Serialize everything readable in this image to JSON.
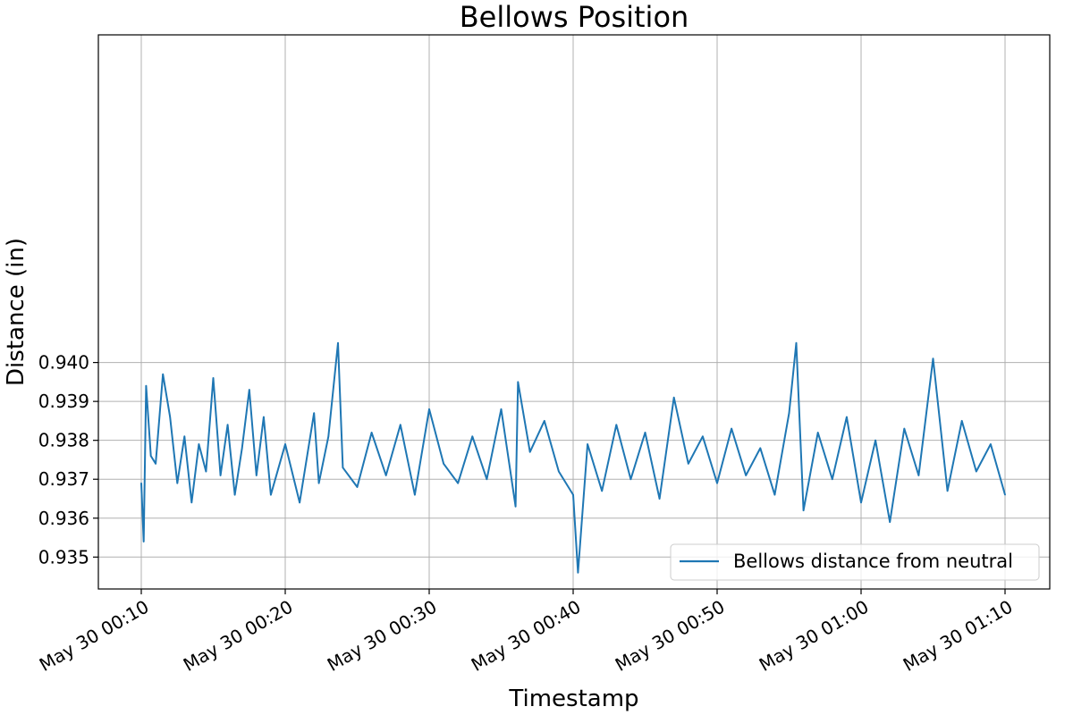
{
  "chart_data": {
    "type": "line",
    "title": "Bellows Position",
    "xlabel": "Timestamp",
    "ylabel": "Distance (in)",
    "x_range": [
      "May 30 00:10",
      "May 30 01:10"
    ],
    "ylim": [
      0.93418,
      0.94842
    ],
    "yticks": [
      {
        "value": 0.935,
        "label": "0.935"
      },
      {
        "value": 0.936,
        "label": "0.936"
      },
      {
        "value": 0.937,
        "label": "0.937"
      },
      {
        "value": 0.938,
        "label": "0.938"
      },
      {
        "value": 0.939,
        "label": "0.939"
      },
      {
        "value": 0.94,
        "label": "0.940"
      }
    ],
    "xticks": [
      {
        "value": "May 30 00:10",
        "label": "May 30 00:10"
      },
      {
        "value": "May 30 00:20",
        "label": "May 30 00:20"
      },
      {
        "value": "May 30 00:30",
        "label": "May 30 00:30"
      },
      {
        "value": "May 30 00:40",
        "label": "May 30 00:40"
      },
      {
        "value": "May 30 00:50",
        "label": "May 30 00:50"
      },
      {
        "value": "May 30 01:00",
        "label": "May 30 01:00"
      },
      {
        "value": "May 30 01:10",
        "label": "May 30 01:10"
      }
    ],
    "grid": true,
    "legend_position": "bottom-right",
    "series": [
      {
        "name": "Bellows distance from neutral",
        "color": "#1f77b4",
        "x": [
          "May 30 00:10",
          "May 30 00:10:10",
          "May 30 00:10:20",
          "May 30 00:10:40",
          "May 30 00:11",
          "May 30 00:11:30",
          "May 30 00:12",
          "May 30 00:12:30",
          "May 30 00:13",
          "May 30 00:13:30",
          "May 30 00:14",
          "May 30 00:14:30",
          "May 30 00:15",
          "May 30 00:15:30",
          "May 30 00:16",
          "May 30 00:16:30",
          "May 30 00:17",
          "May 30 00:17:30",
          "May 30 00:18",
          "May 30 00:18:30",
          "May 30 00:19",
          "May 30 00:20",
          "May 30 00:21",
          "May 30 00:22",
          "May 30 00:22:20",
          "May 30 00:23",
          "May 30 00:23:40",
          "May 30 00:24",
          "May 30 00:25",
          "May 30 00:26",
          "May 30 00:27",
          "May 30 00:28",
          "May 30 00:29",
          "May 30 00:30",
          "May 30 00:31",
          "May 30 00:32",
          "May 30 00:33",
          "May 30 00:34",
          "May 30 00:35",
          "May 30 00:36",
          "May 30 00:36:10",
          "May 30 00:37",
          "May 30 00:38",
          "May 30 00:39",
          "May 30 00:40",
          "May 30 00:40:20",
          "May 30 00:41",
          "May 30 00:42",
          "May 30 00:43",
          "May 30 00:44",
          "May 30 00:45",
          "May 30 00:46",
          "May 30 00:47",
          "May 30 00:48",
          "May 30 00:49",
          "May 30 00:50",
          "May 30 00:51",
          "May 30 00:52",
          "May 30 00:53",
          "May 30 00:54",
          "May 30 00:55",
          "May 30 00:55:30",
          "May 30 00:56",
          "May 30 00:57",
          "May 30 00:58",
          "May 30 00:59",
          "May 30 01:00",
          "May 30 01:01",
          "May 30 01:02",
          "May 30 01:03",
          "May 30 01:04",
          "May 30 01:05",
          "May 30 01:06",
          "May 30 01:07",
          "May 30 01:08",
          "May 30 01:09",
          "May 30 01:10"
        ],
        "y": [
          0.9369,
          0.9354,
          0.9394,
          0.9376,
          0.9374,
          0.9397,
          0.9386,
          0.9369,
          0.9381,
          0.9364,
          0.9379,
          0.9372,
          0.9396,
          0.9371,
          0.9384,
          0.9366,
          0.9378,
          0.9393,
          0.9371,
          0.9386,
          0.9366,
          0.9379,
          0.9364,
          0.9387,
          0.9369,
          0.9381,
          0.9405,
          0.9373,
          0.9368,
          0.9382,
          0.9371,
          0.9384,
          0.9366,
          0.9388,
          0.9374,
          0.9369,
          0.9381,
          0.937,
          0.9388,
          0.9363,
          0.9395,
          0.9377,
          0.9385,
          0.9372,
          0.9366,
          0.9346,
          0.9379,
          0.9367,
          0.9384,
          0.937,
          0.9382,
          0.9365,
          0.9391,
          0.9374,
          0.9381,
          0.9369,
          0.9383,
          0.9371,
          0.9378,
          0.9366,
          0.9387,
          0.9405,
          0.9362,
          0.9382,
          0.937,
          0.9386,
          0.9364,
          0.938,
          0.9359,
          0.9383,
          0.9371,
          0.9401,
          0.9367,
          0.9385,
          0.9372,
          0.9379,
          0.9366
        ]
      }
    ]
  }
}
